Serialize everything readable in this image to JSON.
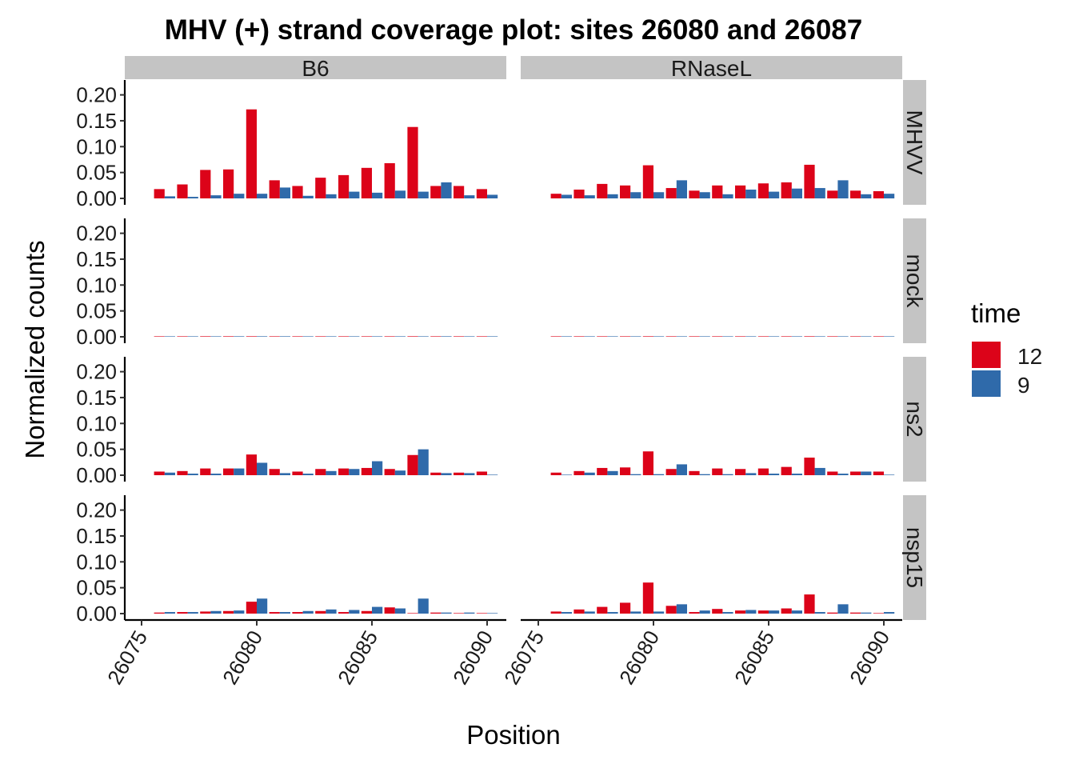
{
  "chart_data": {
    "type": "bar",
    "title": "MHV (+) strand coverage plot: sites 26080 and 26087",
    "xlabel": "Position",
    "ylabel": "Normalized counts",
    "x_ticks": [
      26075,
      26080,
      26085,
      26090
    ],
    "y_ticks": [
      "0.00",
      "0.05",
      "0.10",
      "0.15",
      "0.20"
    ],
    "ylim": [
      0,
      0.23
    ],
    "xlim": [
      26074.7,
      26091
    ],
    "facet_cols": [
      "B6",
      "RNaseL"
    ],
    "facet_rows": [
      "MHVV",
      "mock",
      "ns2",
      "nsp15"
    ],
    "positions": [
      26076,
      26077,
      26078,
      26079,
      26080,
      26081,
      26082,
      26083,
      26084,
      26085,
      26086,
      26087,
      26088,
      26089,
      26090
    ],
    "legend": {
      "title": "time",
      "items": [
        {
          "label": "12",
          "color": "#dc0319"
        },
        {
          "label": "9",
          "color": "#2f6aaa"
        }
      ]
    },
    "series_colors": {
      "12": "#dc0319",
      "9": "#2f6aaa"
    },
    "panels": [
      {
        "col": "B6",
        "row": "MHVV",
        "t12": [
          0.018,
          0.027,
          0.055,
          0.056,
          0.172,
          0.035,
          0.024,
          0.04,
          0.045,
          0.059,
          0.068,
          0.138,
          0.024,
          0.024,
          0.018
        ],
        "t9": [
          0.004,
          0.003,
          0.006,
          0.009,
          0.009,
          0.021,
          0.005,
          0.008,
          0.013,
          0.011,
          0.015,
          0.013,
          0.031,
          0.006,
          0.007
        ]
      },
      {
        "col": "RNaseL",
        "row": "MHVV",
        "t12": [
          0.009,
          0.017,
          0.028,
          0.025,
          0.064,
          0.02,
          0.015,
          0.025,
          0.025,
          0.029,
          0.031,
          0.065,
          0.015,
          0.015,
          0.014
        ],
        "t9": [
          0.007,
          0.006,
          0.008,
          0.012,
          0.012,
          0.035,
          0.012,
          0.008,
          0.017,
          0.013,
          0.019,
          0.02,
          0.035,
          0.008,
          0.009
        ]
      },
      {
        "col": "B6",
        "row": "mock",
        "t12": [
          0.0005,
          0.0005,
          0.001,
          0.001,
          0.001,
          0.0005,
          0.0005,
          0.0005,
          0.0005,
          0.0005,
          0.0005,
          0.001,
          0.0005,
          0.0005,
          0.0005
        ],
        "t9": [
          0.0005,
          0.0005,
          0.0005,
          0.001,
          0.001,
          0.001,
          0.0005,
          0.0005,
          0.0005,
          0.0005,
          0.0005,
          0.0005,
          0.001,
          0.0005,
          0.0005
        ]
      },
      {
        "col": "RNaseL",
        "row": "mock",
        "t12": [
          0.0005,
          0.0005,
          0.0005,
          0.0005,
          0.001,
          0.0005,
          0.0005,
          0.0005,
          0.0005,
          0.0005,
          0.0005,
          0.001,
          0.0005,
          0.0005,
          0.0005
        ],
        "t9": [
          0.0005,
          0.0005,
          0.0005,
          0.0005,
          0.0005,
          0.0005,
          0.0005,
          0.0005,
          0.0005,
          0.0005,
          0.0005,
          0.0005,
          0.0005,
          0.0005,
          0.0005
        ]
      },
      {
        "col": "B6",
        "row": "ns2",
        "t12": [
          0.007,
          0.008,
          0.013,
          0.013,
          0.04,
          0.012,
          0.007,
          0.012,
          0.013,
          0.014,
          0.012,
          0.039,
          0.005,
          0.005,
          0.007
        ],
        "t9": [
          0.005,
          0.003,
          0.003,
          0.013,
          0.024,
          0.004,
          0.003,
          0.008,
          0.012,
          0.027,
          0.009,
          0.05,
          0.004,
          0.004,
          0.001
        ]
      },
      {
        "col": "RNaseL",
        "row": "ns2",
        "t12": [
          0.005,
          0.008,
          0.014,
          0.015,
          0.046,
          0.012,
          0.008,
          0.013,
          0.012,
          0.013,
          0.016,
          0.034,
          0.007,
          0.007,
          0.007
        ],
        "t9": [
          0.001,
          0.005,
          0.008,
          0.002,
          0.002,
          0.021,
          0.002,
          0.002,
          0.004,
          0.003,
          0.003,
          0.014,
          0.003,
          0.007,
          0.001
        ]
      },
      {
        "col": "B6",
        "row": "nsp15",
        "t12": [
          0.002,
          0.003,
          0.004,
          0.005,
          0.023,
          0.003,
          0.003,
          0.005,
          0.003,
          0.005,
          0.012,
          0.001,
          0.002,
          0.001,
          0.001
        ],
        "t9": [
          0.003,
          0.003,
          0.005,
          0.006,
          0.029,
          0.003,
          0.005,
          0.008,
          0.007,
          0.013,
          0.01,
          0.029,
          0.002,
          0.002,
          0.001
        ]
      },
      {
        "col": "RNaseL",
        "row": "nsp15",
        "t12": [
          0.004,
          0.008,
          0.013,
          0.021,
          0.06,
          0.015,
          0.003,
          0.009,
          0.006,
          0.006,
          0.01,
          0.037,
          0.002,
          0.002,
          0.001
        ],
        "t9": [
          0.003,
          0.004,
          0.003,
          0.004,
          0.004,
          0.018,
          0.006,
          0.003,
          0.007,
          0.006,
          0.006,
          0.003,
          0.018,
          0.002,
          0.003
        ]
      }
    ]
  }
}
